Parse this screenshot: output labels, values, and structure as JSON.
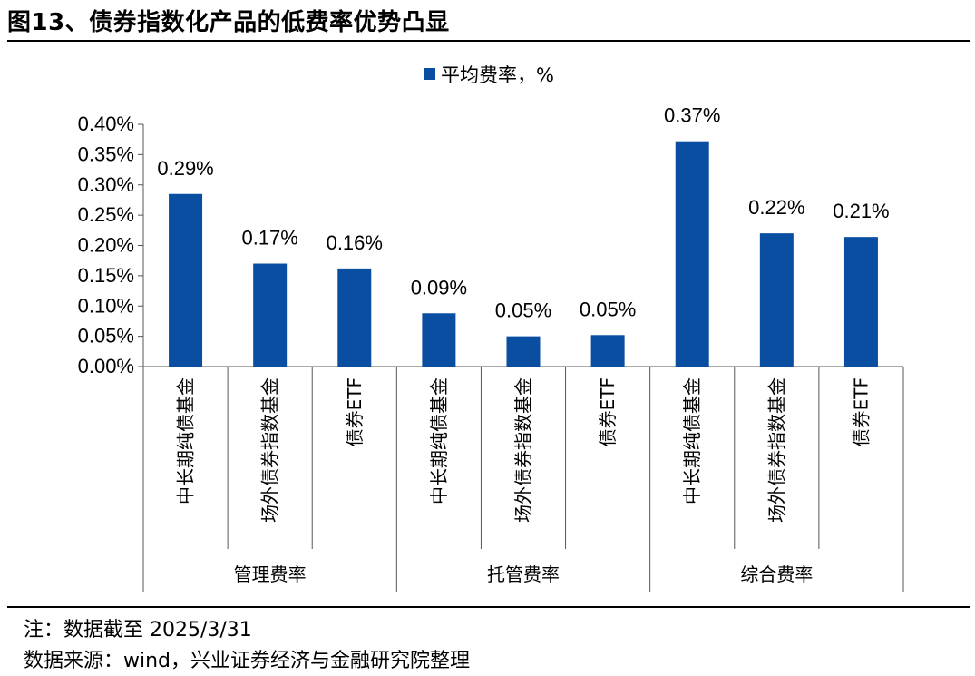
{
  "title": "图13、债券指数化产品的低费率优势凸显",
  "notes": {
    "note": "注：数据截至 2025/3/31",
    "source": "数据来源：wind，兴业证券经济与金融研究院整理"
  },
  "chart_data": {
    "type": "bar",
    "legend": "平均费率，%",
    "legend_position": "top-center",
    "bar_color": "#0a4ea2",
    "ylim": [
      0,
      0.4
    ],
    "yticks": [
      "0.00%",
      "0.05%",
      "0.10%",
      "0.15%",
      "0.20%",
      "0.25%",
      "0.30%",
      "0.35%",
      "0.40%"
    ],
    "groups": [
      {
        "name": "管理费率",
        "categories": [
          "中长期纯债基金",
          "场外债券指数基金",
          "债券ETF"
        ],
        "values": [
          0.285,
          0.17,
          0.162
        ],
        "labels": [
          "0.29%",
          "0.17%",
          "0.16%"
        ]
      },
      {
        "name": "托管费率",
        "categories": [
          "中长期纯债基金",
          "场外债券指数基金",
          "债券ETF"
        ],
        "values": [
          0.088,
          0.05,
          0.052
        ],
        "labels": [
          "0.09%",
          "0.05%",
          "0.05%"
        ]
      },
      {
        "name": "综合费率",
        "categories": [
          "中长期纯债基金",
          "场外债券指数基金",
          "债券ETF"
        ],
        "values": [
          0.372,
          0.22,
          0.214
        ],
        "labels": [
          "0.37%",
          "0.22%",
          "0.21%"
        ]
      }
    ]
  }
}
